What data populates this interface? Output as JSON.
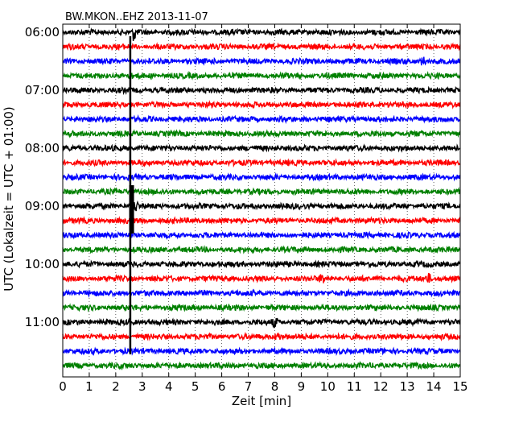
{
  "chart_data": {
    "type": "line",
    "title": "BW.MKON..EHZ 2013-11-07",
    "xlabel": "Zeit  [min]",
    "ylabel": "UTC (Lokalzeit = UTC + 01:00)",
    "xlim": [
      0,
      15
    ],
    "x_ticks": [
      "0",
      "1",
      "2",
      "3",
      "4",
      "5",
      "6",
      "7",
      "8",
      "9",
      "10",
      "11",
      "12",
      "13",
      "14",
      "15"
    ],
    "y_tick_labels": [
      "06:00",
      "07:00",
      "08:00",
      "09:00",
      "10:00",
      "11:00"
    ],
    "grid": "vertical dotted",
    "legend": "none",
    "trace_interval_min": 15,
    "traces": [
      {
        "start": "06:00",
        "color": "#000000"
      },
      {
        "start": "06:15",
        "color": "#ff0000"
      },
      {
        "start": "06:30",
        "color": "#0000ff"
      },
      {
        "start": "06:45",
        "color": "#008000"
      },
      {
        "start": "07:00",
        "color": "#000000"
      },
      {
        "start": "07:15",
        "color": "#ff0000"
      },
      {
        "start": "07:30",
        "color": "#0000ff"
      },
      {
        "start": "07:45",
        "color": "#008000"
      },
      {
        "start": "08:00",
        "color": "#000000"
      },
      {
        "start": "08:15",
        "color": "#ff0000"
      },
      {
        "start": "08:30",
        "color": "#0000ff"
      },
      {
        "start": "08:45",
        "color": "#008000"
      },
      {
        "start": "09:00",
        "color": "#000000"
      },
      {
        "start": "09:15",
        "color": "#ff0000"
      },
      {
        "start": "09:30",
        "color": "#0000ff"
      },
      {
        "start": "09:45",
        "color": "#008000"
      },
      {
        "start": "10:00",
        "color": "#000000"
      },
      {
        "start": "10:15",
        "color": "#ff0000"
      },
      {
        "start": "10:30",
        "color": "#0000ff"
      },
      {
        "start": "10:45",
        "color": "#008000"
      },
      {
        "start": "11:00",
        "color": "#000000"
      },
      {
        "start": "11:15",
        "color": "#ff0000"
      },
      {
        "start": "11:30",
        "color": "#0000ff"
      },
      {
        "start": "11:45",
        "color": "#008000"
      }
    ],
    "events": [
      {
        "trace_start": "06:00",
        "minute": 2.7,
        "type": "spike"
      },
      {
        "trace_start": "09:00",
        "minute": 2.75,
        "type": "burst"
      },
      {
        "trace_start": "06:30",
        "minute": 13.6,
        "type": "burst"
      },
      {
        "trace_start": "10:15",
        "minute": 9.8,
        "type": "burst"
      },
      {
        "trace_start": "10:15",
        "minute": 13.8,
        "type": "burst"
      },
      {
        "trace_start": "11:00",
        "minute": 8.0,
        "type": "burst"
      },
      {
        "trace_start": "11:15",
        "minute": 8.1,
        "type": "burst"
      }
    ]
  }
}
